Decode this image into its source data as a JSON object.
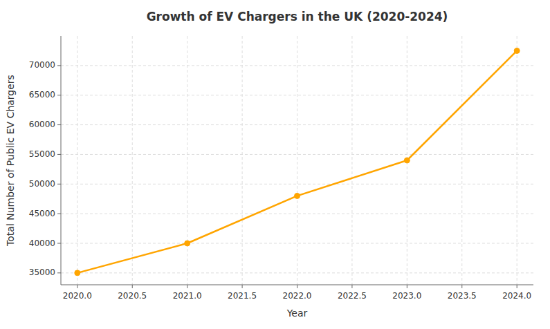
{
  "chart_data": {
    "type": "line",
    "title": "Growth of EV Chargers in the UK (2020-2024)",
    "xlabel": "Year",
    "ylabel": "Total Number of Public EV Chargers",
    "x": [
      2020,
      2021,
      2022,
      2023,
      2024
    ],
    "values": [
      35000,
      40000,
      48000,
      54000,
      72500
    ],
    "color": "#FFA500",
    "marker": "circle",
    "xlim": [
      2019.85,
      2024.15
    ],
    "xticks": [
      {
        "value": 2020,
        "label": "2020.0"
      },
      2020.5,
      {
        "value": 2021,
        "label": "2021.0"
      },
      2021.5,
      {
        "value": 2022,
        "label": "2022.0"
      },
      2022.5,
      {
        "value": 2023,
        "label": "2023.0"
      },
      2023.5,
      {
        "value": 2024,
        "label": "2024.0"
      }
    ],
    "ylim": [
      33000,
      75000
    ],
    "yticks": [
      35000,
      40000,
      45000,
      50000,
      55000,
      60000,
      65000,
      70000
    ],
    "grid": true
  }
}
